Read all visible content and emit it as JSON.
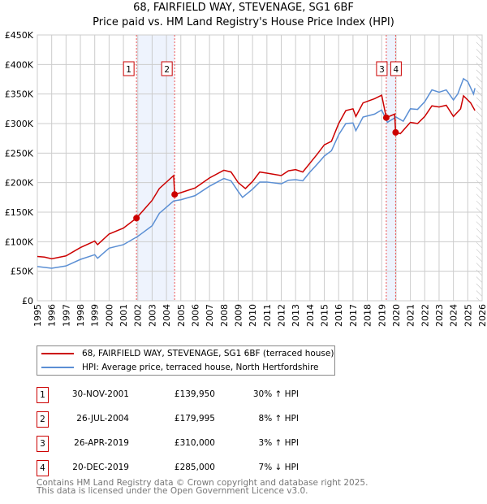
{
  "chart_data": {
    "type": "line",
    "title": "68, FAIRFIELD WAY, STEVENAGE, SG1 6BF",
    "subtitle": "Price paid vs. HM Land Registry's House Price Index (HPI)",
    "xlim": [
      1995,
      2026
    ],
    "ylim": [
      0,
      450000
    ],
    "yticks": [
      "£0",
      "£50K",
      "£100K",
      "£150K",
      "£200K",
      "£250K",
      "£300K",
      "£350K",
      "£400K",
      "£450K"
    ],
    "xticks": [
      "1995",
      "1996",
      "1997",
      "1998",
      "1999",
      "2000",
      "2001",
      "2002",
      "2003",
      "2004",
      "2005",
      "2006",
      "2007",
      "2008",
      "2009",
      "2010",
      "2011",
      "2012",
      "2013",
      "2014",
      "2015",
      "2016",
      "2017",
      "2018",
      "2019",
      "2020",
      "2021",
      "2022",
      "2023",
      "2024",
      "2025",
      "2026"
    ],
    "grid": true,
    "series": [
      {
        "name": "68, FAIRFIELD WAY, STEVENAGE, SG1 6BF (terraced house)",
        "color": "#cc0000",
        "x": [
          1995,
          1995.5,
          1996,
          1997,
          1998,
          1999,
          1999.2,
          2000,
          2001,
          2001.91,
          2003,
          2003.5,
          2004.5,
          2004.57,
          2005,
          2006,
          2007,
          2008,
          2008.5,
          2009,
          2009.5,
          2010,
          2010.5,
          2011,
          2012,
          2012.5,
          2013,
          2013.5,
          2014,
          2014.5,
          2015,
          2015.5,
          2016,
          2016.5,
          2017,
          2017.2,
          2017.7,
          2018.5,
          2019,
          2019.32,
          2019.9,
          2019.97,
          2020.3,
          2021,
          2021.5,
          2022,
          2022.5,
          2023,
          2023.5,
          2024,
          2024.5,
          2024.7,
          2025.2,
          2025.5
        ],
        "y": [
          75,
          74,
          71,
          76,
          90,
          101,
          95,
          113,
          123,
          140,
          170,
          190,
          212,
          180,
          183,
          191,
          208,
          221,
          218,
          200,
          190,
          202,
          218,
          216,
          212,
          220,
          222,
          218,
          233,
          248,
          264,
          270,
          300,
          322,
          325,
          312,
          335,
          342,
          348,
          310,
          316,
          285,
          283,
          302,
          300,
          312,
          330,
          328,
          331,
          312,
          325,
          347,
          335,
          322
        ]
      },
      {
        "name": "HPI: Average price, terraced house, North Hertfordshire",
        "color": "#5b8fd4",
        "x": [
          1995,
          1996,
          1997,
          1998,
          1999,
          1999.2,
          2000,
          2001,
          2002,
          2003,
          2003.5,
          2004.5,
          2005,
          2006,
          2007,
          2008,
          2008.5,
          2009,
          2009.3,
          2010,
          2010.5,
          2011,
          2012,
          2012.5,
          2013,
          2013.5,
          2014,
          2014.5,
          2015,
          2015.5,
          2016,
          2016.5,
          2017,
          2017.2,
          2017.7,
          2018.5,
          2019,
          2019.4,
          2020,
          2020.5,
          2021,
          2021.5,
          2022,
          2022.5,
          2023,
          2023.5,
          2024,
          2024.3,
          2024.7,
          2025,
          2025.4,
          2025.5
        ],
        "y": [
          58,
          55,
          59,
          70,
          78,
          72,
          89,
          95,
          109,
          127,
          148,
          169,
          171,
          178,
          194,
          207,
          203,
          185,
          175,
          189,
          201,
          201,
          198,
          204,
          205,
          203,
          218,
          231,
          245,
          254,
          281,
          300,
          301,
          288,
          311,
          316,
          323,
          302,
          311,
          304,
          325,
          324,
          337,
          357,
          353,
          357,
          340,
          350,
          376,
          371,
          350,
          360
        ]
      }
    ],
    "units": "thousands GBP",
    "transactions": [
      {
        "label": "1",
        "date": "30-NOV-2001",
        "price": "£139,950",
        "hpi": "30% ↑ HPI",
        "x": 2001.91,
        "y": 139.95
      },
      {
        "label": "2",
        "date": "26-JUL-2004",
        "price": "£179,995",
        "hpi": "8% ↑ HPI",
        "x": 2004.57,
        "y": 179.995
      },
      {
        "label": "3",
        "date": "26-APR-2019",
        "price": "£310,000",
        "hpi": "3% ↑ HPI",
        "x": 2019.32,
        "y": 310
      },
      {
        "label": "4",
        "date": "20-DEC-2019",
        "price": "£285,000",
        "hpi": "7% ↓ HPI",
        "x": 2019.97,
        "y": 285
      }
    ],
    "shaded_ranges": [
      [
        2001.91,
        2004.57
      ],
      [
        2019.32,
        2019.97
      ]
    ],
    "forecast_hatch_from": 2025.6
  },
  "footer": {
    "line1": "Contains HM Land Registry data © Crown copyright and database right 2025.",
    "line2": "This data is licensed under the Open Government Licence v3.0."
  }
}
